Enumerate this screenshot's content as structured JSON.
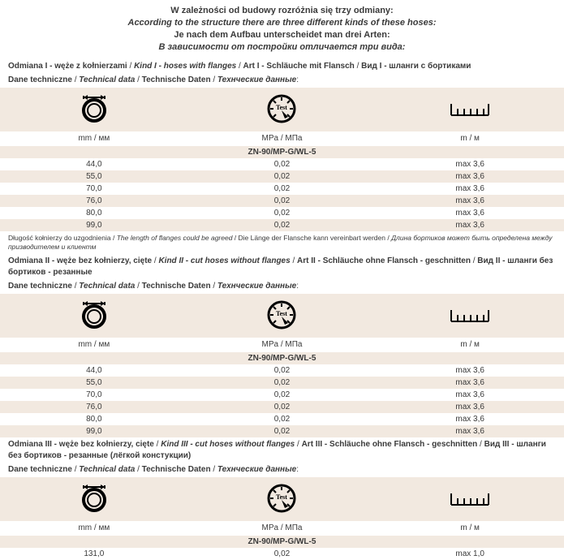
{
  "header": {
    "l1": "W zależności od budowy rozróżnia się trzy odmiany:",
    "l2": "According to the structure there are three different kinds of these hoses:",
    "l3": "Je nach dem Aufbau unterscheidet man drei Arten:",
    "l4": "В зависимости от постройки отличается три вида:"
  },
  "colLabels": {
    "c1": "mm / мм",
    "c2": "MPa / МПа",
    "c3": "m / м"
  },
  "dataLabel": {
    "pl": "Dane techniczne",
    "en": "Technical data",
    "de": "Technische Daten",
    "ru": "Технческие данные"
  },
  "sections": [
    {
      "title": {
        "pl": "Odmiana I - węże z kołnierzami",
        "en": "Kind I - hoses with flanges",
        "de": "Art I - Schläuche mit Flansch",
        "ru": "Вид I - шланги с бортиками"
      },
      "product": "ZN-90/MP-G/WL-5",
      "rows": [
        [
          "44,0",
          "0,02",
          "max 3,6"
        ],
        [
          "55,0",
          "0,02",
          "max 3,6"
        ],
        [
          "70,0",
          "0,02",
          "max 3,6"
        ],
        [
          "76,0",
          "0,02",
          "max 3,6"
        ],
        [
          "80,0",
          "0,02",
          "max 3,6"
        ],
        [
          "99,0",
          "0,02",
          "max 3,6"
        ]
      ],
      "footnote": {
        "pl": "Długość kołnierzy do uzgodnienia",
        "en": "The length of flanges could be agreed",
        "de": "Die Länge der Flansche kann vereinbart werden",
        "ru": "Длина бортиков может быть определена между призводителем и клиентм"
      }
    },
    {
      "title": {
        "pl": "Odmiana II - węże bez kołnierzy, cięte",
        "en": "Kind II - cut hoses without flanges",
        "de": "Art II - Schläuche ohne Flansch - geschnitten",
        "ru": "Вид II - шланги без бортиков - резанные"
      },
      "product": "ZN-90/MP-G/WL-5",
      "rows": [
        [
          "44,0",
          "0,02",
          "max 3,6"
        ],
        [
          "55,0",
          "0,02",
          "max 3,6"
        ],
        [
          "70,0",
          "0,02",
          "max 3,6"
        ],
        [
          "76,0",
          "0,02",
          "max 3,6"
        ],
        [
          "80,0",
          "0,02",
          "max 3,6"
        ],
        [
          "99,0",
          "0,02",
          "max 3,6"
        ]
      ]
    },
    {
      "title": {
        "pl": "Odmiana III - węże bez kołnierzy, cięte",
        "en": "Kind III - cut hoses without flanges",
        "de": "Art III - Schläuche ohne Flansch - geschnitten",
        "ru": "Вид III - шланги без бортиков - резанные (лёгкой констукции)"
      },
      "product": "ZN-90/MP-G/WL-5",
      "rows": [
        [
          "131,0",
          "0,02",
          "max 1,0"
        ]
      ]
    }
  ]
}
